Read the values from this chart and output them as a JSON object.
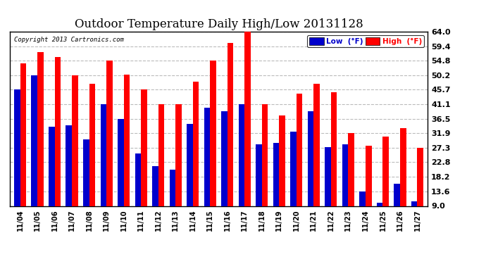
{
  "title": "Outdoor Temperature Daily High/Low 20131128",
  "copyright": "Copyright 2013 Cartronics.com",
  "legend_low_label": "Low  (°F)",
  "legend_high_label": "High  (°F)",
  "categories": [
    "11/04",
    "11/05",
    "11/06",
    "11/07",
    "11/08",
    "11/09",
    "11/10",
    "11/11",
    "11/12",
    "11/13",
    "11/14",
    "11/15",
    "11/16",
    "11/17",
    "11/18",
    "11/19",
    "11/20",
    "11/21",
    "11/22",
    "11/23",
    "11/24",
    "11/25",
    "11/26",
    "11/27"
  ],
  "high_values": [
    54.0,
    57.5,
    56.0,
    50.2,
    47.5,
    54.8,
    50.5,
    45.7,
    41.1,
    41.1,
    48.2,
    55.0,
    60.5,
    64.0,
    41.1,
    37.5,
    44.5,
    47.5,
    45.0,
    32.0,
    28.0,
    31.0,
    33.5,
    27.3
  ],
  "low_values": [
    45.7,
    50.2,
    34.0,
    34.5,
    30.0,
    41.1,
    36.5,
    25.5,
    21.5,
    20.5,
    35.0,
    40.0,
    39.0,
    41.1,
    28.5,
    29.0,
    32.5,
    39.0,
    27.5,
    28.5,
    13.6,
    10.0,
    16.0,
    10.5
  ],
  "bar_color_high": "#ff0000",
  "bar_color_low": "#0000cc",
  "bg_color": "#ffffff",
  "grid_color": "#bbbbbb",
  "title_fontsize": 12,
  "yticks": [
    9.0,
    13.6,
    18.2,
    22.8,
    27.3,
    31.9,
    36.5,
    41.1,
    45.7,
    50.2,
    54.8,
    59.4,
    64.0
  ],
  "ylim_min": 9.0,
  "ylim_max": 64.0,
  "bar_width": 0.35
}
